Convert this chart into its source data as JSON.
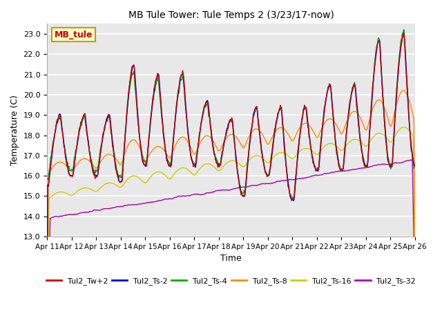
{
  "title": "MB Tule Tower: Tule Temps 2 (3/23/17-now)",
  "xlabel": "Time",
  "ylabel": "Temperature (C)",
  "ylim": [
    13.0,
    23.5
  ],
  "yticks": [
    13.0,
    14.0,
    15.0,
    16.0,
    17.0,
    18.0,
    19.0,
    20.0,
    21.0,
    22.0,
    23.0
  ],
  "bg_color": "#e8e8e8",
  "grid_color": "#ffffff",
  "series_colors": {
    "Tul2_Tw+2": "#cc0000",
    "Tul2_Ts-2": "#0000cc",
    "Tul2_Ts-4": "#00aa00",
    "Tul2_Ts-8": "#ff8800",
    "Tul2_Ts-16": "#cccc00",
    "Tul2_Ts-32": "#aa00aa"
  },
  "xtick_labels": [
    "Apr 11",
    "Apr 12",
    "Apr 13",
    "Apr 14",
    "Apr 15",
    "Apr 16",
    "Apr 17",
    "Apr 18",
    "Apr 19",
    "Apr 20",
    "Apr 21",
    "Apr 22",
    "Apr 23",
    "Apr 24",
    "Apr 25",
    "Apr 26"
  ],
  "legend_label": "MB_tule",
  "legend_bg": "#ffffcc",
  "legend_border": "#cc9900",
  "legend_text_color": "#cc0000",
  "n_days": 15,
  "pts_per_day": 48
}
